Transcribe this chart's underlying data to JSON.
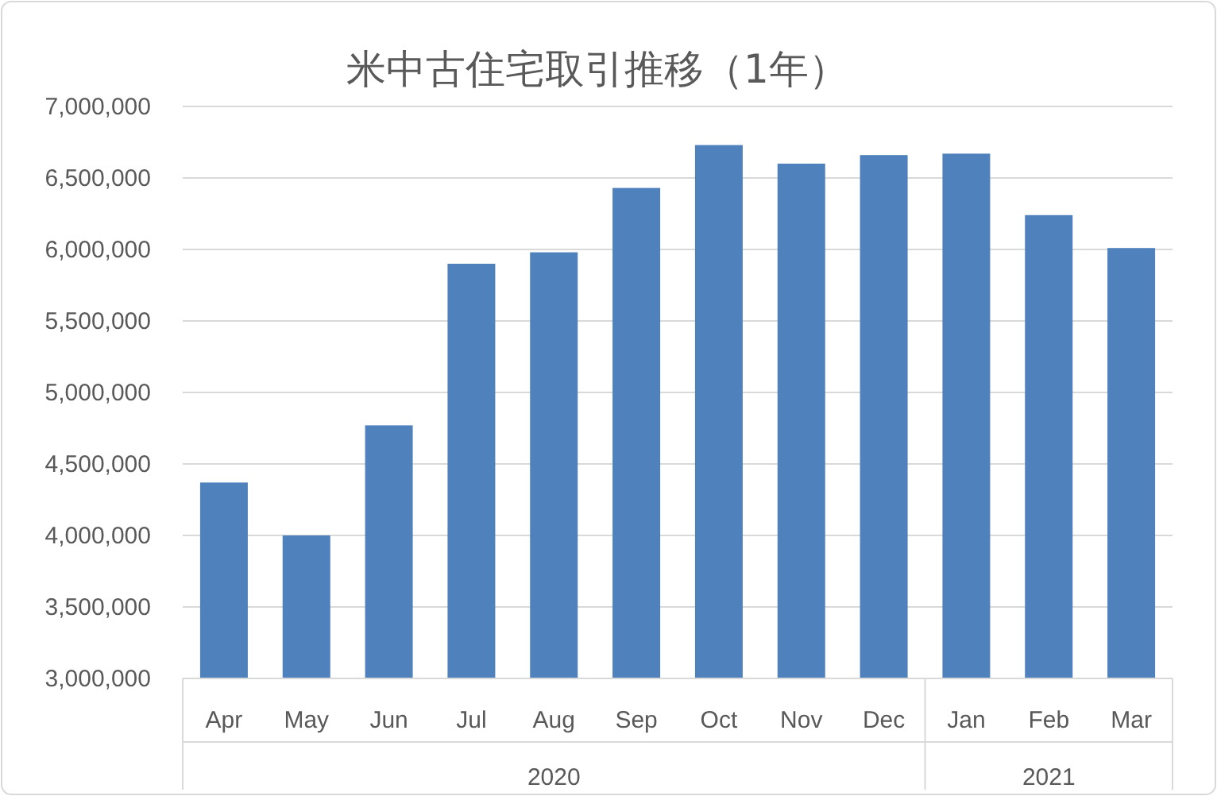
{
  "chart_data": {
    "type": "bar",
    "title": "米中古住宅取引推移（1年）",
    "categories": [
      "Apr",
      "May",
      "Jun",
      "Jul",
      "Aug",
      "Sep",
      "Oct",
      "Nov",
      "Dec",
      "Jan",
      "Feb",
      "Mar"
    ],
    "values": [
      4370000,
      4000000,
      4770000,
      5900000,
      5980000,
      6430000,
      6730000,
      6600000,
      6660000,
      6670000,
      6240000,
      6010000
    ],
    "color": "#4f81bd",
    "ylim": [
      3000000,
      7000000
    ],
    "yticks": [
      {
        "value": 3000000,
        "label": "3,000,000"
      },
      {
        "value": 3500000,
        "label": "3,500,000"
      },
      {
        "value": 4000000,
        "label": "4,000,000"
      },
      {
        "value": 4500000,
        "label": "4,500,000"
      },
      {
        "value": 5000000,
        "label": "5,000,000"
      },
      {
        "value": 5500000,
        "label": "5,500,000"
      },
      {
        "value": 6000000,
        "label": "6,000,000"
      },
      {
        "value": 6500000,
        "label": "6,500,000"
      },
      {
        "value": 7000000,
        "label": "7,000,000"
      }
    ],
    "grid": "y",
    "annotations": [
      "2020",
      "2021"
    ]
  }
}
